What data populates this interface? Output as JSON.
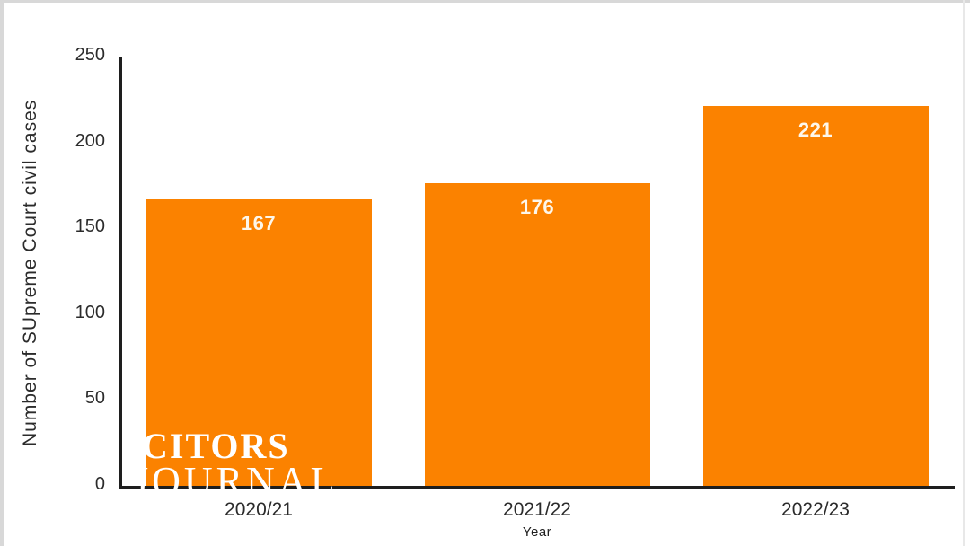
{
  "chart_data": {
    "type": "bar",
    "title": "",
    "categories": [
      "2020/21",
      "2021/22",
      "2022/23"
    ],
    "values": [
      167,
      176,
      221
    ],
    "xlabel": "Year",
    "ylabel": "Number of SUpreme Court civil cases",
    "ylim": [
      0,
      250
    ],
    "yticks": [
      0,
      50,
      100,
      150,
      200,
      250
    ],
    "grid": "off",
    "legend": "none",
    "bar_color": "#FB8200",
    "value_label_color": "#FDF7EB",
    "axis_color": "#1E1E1E",
    "tick_label_color": "#2B2B2B"
  },
  "watermark": {
    "line1": "CITORS",
    "line2": "JOURNAL"
  }
}
